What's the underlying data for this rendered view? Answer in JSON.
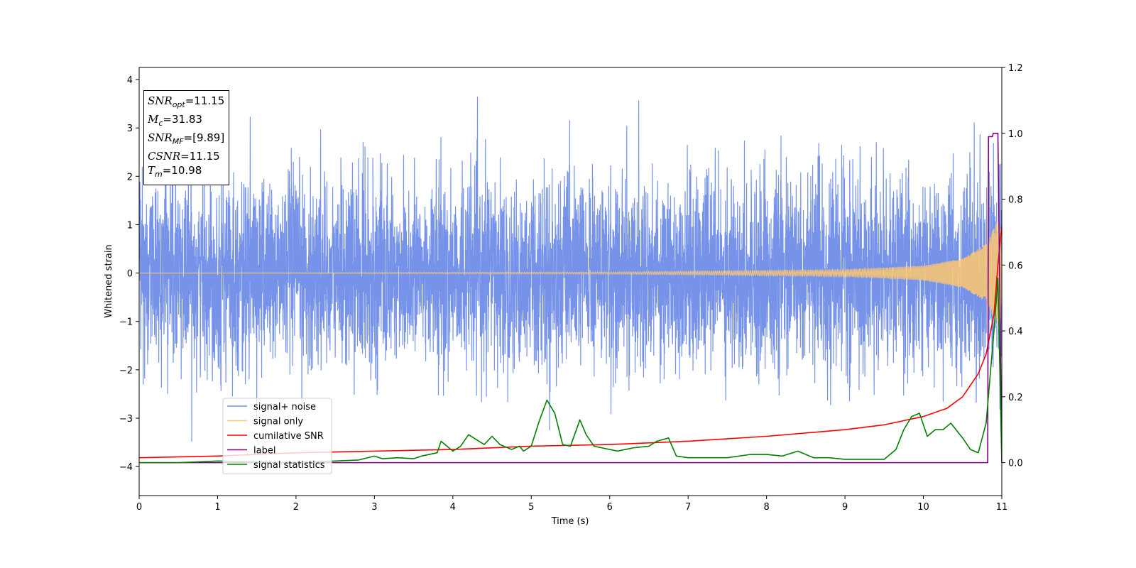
{
  "chart_data": {
    "type": "line",
    "xlabel": "Time (s)",
    "ylabel": "Whitened strain",
    "xlim": [
      0,
      11
    ],
    "ylim_left": [
      -4.6,
      4.25
    ],
    "ylim_right": [
      -0.1,
      1.2
    ],
    "x_ticks": [
      "0",
      "1",
      "2",
      "3",
      "4",
      "5",
      "6",
      "7",
      "8",
      "9",
      "10",
      "11"
    ],
    "y_ticks_left": [
      "4",
      "3",
      "2",
      "1",
      "0",
      "−1",
      "−2",
      "−3",
      "−4"
    ],
    "y_ticks_right": [
      "1.2",
      "1.0",
      "0.8",
      "0.6",
      "0.4",
      "0.2",
      "0.0"
    ],
    "legend_position": "lower-left",
    "legend": [
      {
        "label": "signal+ noise",
        "color": "#6f8de8"
      },
      {
        "label": "signal only",
        "color": "#ffc870"
      },
      {
        "label": "cumilative SNR",
        "color": "#ff0000"
      },
      {
        "label": "label",
        "color": "#800080"
      },
      {
        "label": "signal statistics",
        "color": "#008000"
      }
    ],
    "series": [
      {
        "name": "signal+ noise",
        "axis": "left",
        "color": "#6f8de8",
        "description_values": {
          "noise_std": 0.95,
          "min": -4.15,
          "max": 3.85
        }
      },
      {
        "name": "signal only",
        "axis": "left",
        "color": "#ffc870",
        "envelope": {
          "x": [
            0,
            6,
            9,
            10,
            10.5,
            10.8,
            10.95,
            11
          ],
          "amp": [
            0.0,
            0.02,
            0.07,
            0.15,
            0.3,
            0.6,
            1.1,
            0.9
          ]
        }
      },
      {
        "name": "cumilative SNR",
        "axis": "right",
        "color": "#ff0000",
        "x": [
          0,
          1,
          2,
          3,
          4,
          5,
          6,
          7,
          8,
          9,
          9.5,
          10,
          10.3,
          10.5,
          10.7,
          10.8,
          10.9,
          10.95,
          11
        ],
        "y": [
          0.015,
          0.02,
          0.03,
          0.035,
          0.04,
          0.05,
          0.055,
          0.065,
          0.08,
          0.1,
          0.115,
          0.14,
          0.165,
          0.2,
          0.27,
          0.33,
          0.45,
          0.6,
          0.72
        ]
      },
      {
        "name": "label",
        "axis": "right",
        "color": "#800080",
        "x": [
          0,
          10.82,
          10.83,
          10.88,
          10.89,
          10.94,
          10.95,
          11
        ],
        "y": [
          0.0,
          0.0,
          0.99,
          0.99,
          1.0,
          1.0,
          1.0,
          0.0
        ]
      },
      {
        "name": "signal statistics",
        "axis": "right",
        "color": "#008000",
        "x": [
          0,
          0.5,
          1,
          1.5,
          2,
          2.5,
          2.8,
          3.0,
          3.1,
          3.3,
          3.5,
          3.6,
          3.8,
          3.85,
          4.0,
          4.1,
          4.2,
          4.3,
          4.4,
          4.5,
          4.6,
          4.75,
          4.85,
          4.9,
          5.0,
          5.1,
          5.2,
          5.3,
          5.4,
          5.5,
          5.62,
          5.7,
          5.8,
          5.9,
          6.0,
          6.1,
          6.2,
          6.3,
          6.5,
          6.6,
          6.75,
          6.85,
          7.0,
          7.2,
          7.5,
          7.8,
          8.0,
          8.2,
          8.4,
          8.6,
          8.8,
          9.0,
          9.2,
          9.5,
          9.65,
          9.75,
          9.85,
          9.95,
          10.05,
          10.15,
          10.25,
          10.35,
          10.5,
          10.6,
          10.7,
          10.8,
          10.9,
          10.95,
          11.0
        ],
        "y": [
          0.0,
          0.0,
          0.005,
          0.002,
          0.0,
          0.005,
          0.008,
          0.02,
          0.012,
          0.015,
          0.012,
          0.02,
          0.03,
          0.065,
          0.035,
          0.05,
          0.085,
          0.07,
          0.055,
          0.08,
          0.055,
          0.04,
          0.05,
          0.035,
          0.05,
          0.125,
          0.19,
          0.15,
          0.055,
          0.05,
          0.13,
          0.085,
          0.05,
          0.045,
          0.04,
          0.035,
          0.04,
          0.045,
          0.05,
          0.065,
          0.075,
          0.02,
          0.015,
          0.015,
          0.015,
          0.025,
          0.025,
          0.02,
          0.035,
          0.015,
          0.015,
          0.01,
          0.01,
          0.01,
          0.04,
          0.1,
          0.14,
          0.15,
          0.08,
          0.1,
          0.1,
          0.12,
          0.075,
          0.04,
          0.03,
          0.12,
          0.4,
          0.56,
          0.0
        ]
      }
    ]
  },
  "annotation": {
    "lines": [
      {
        "sym": "SNR",
        "sub": "opt",
        "val": "=11.15"
      },
      {
        "sym": "M",
        "sub": "c",
        "val": "=31.83"
      },
      {
        "sym": "SNR",
        "sub": "MF",
        "val": "=[9.89]"
      },
      {
        "sym": "CSNR",
        "sub": "",
        "val": "=11.15"
      },
      {
        "sym": "T",
        "sub": "m",
        "val": "=10.98"
      }
    ]
  }
}
